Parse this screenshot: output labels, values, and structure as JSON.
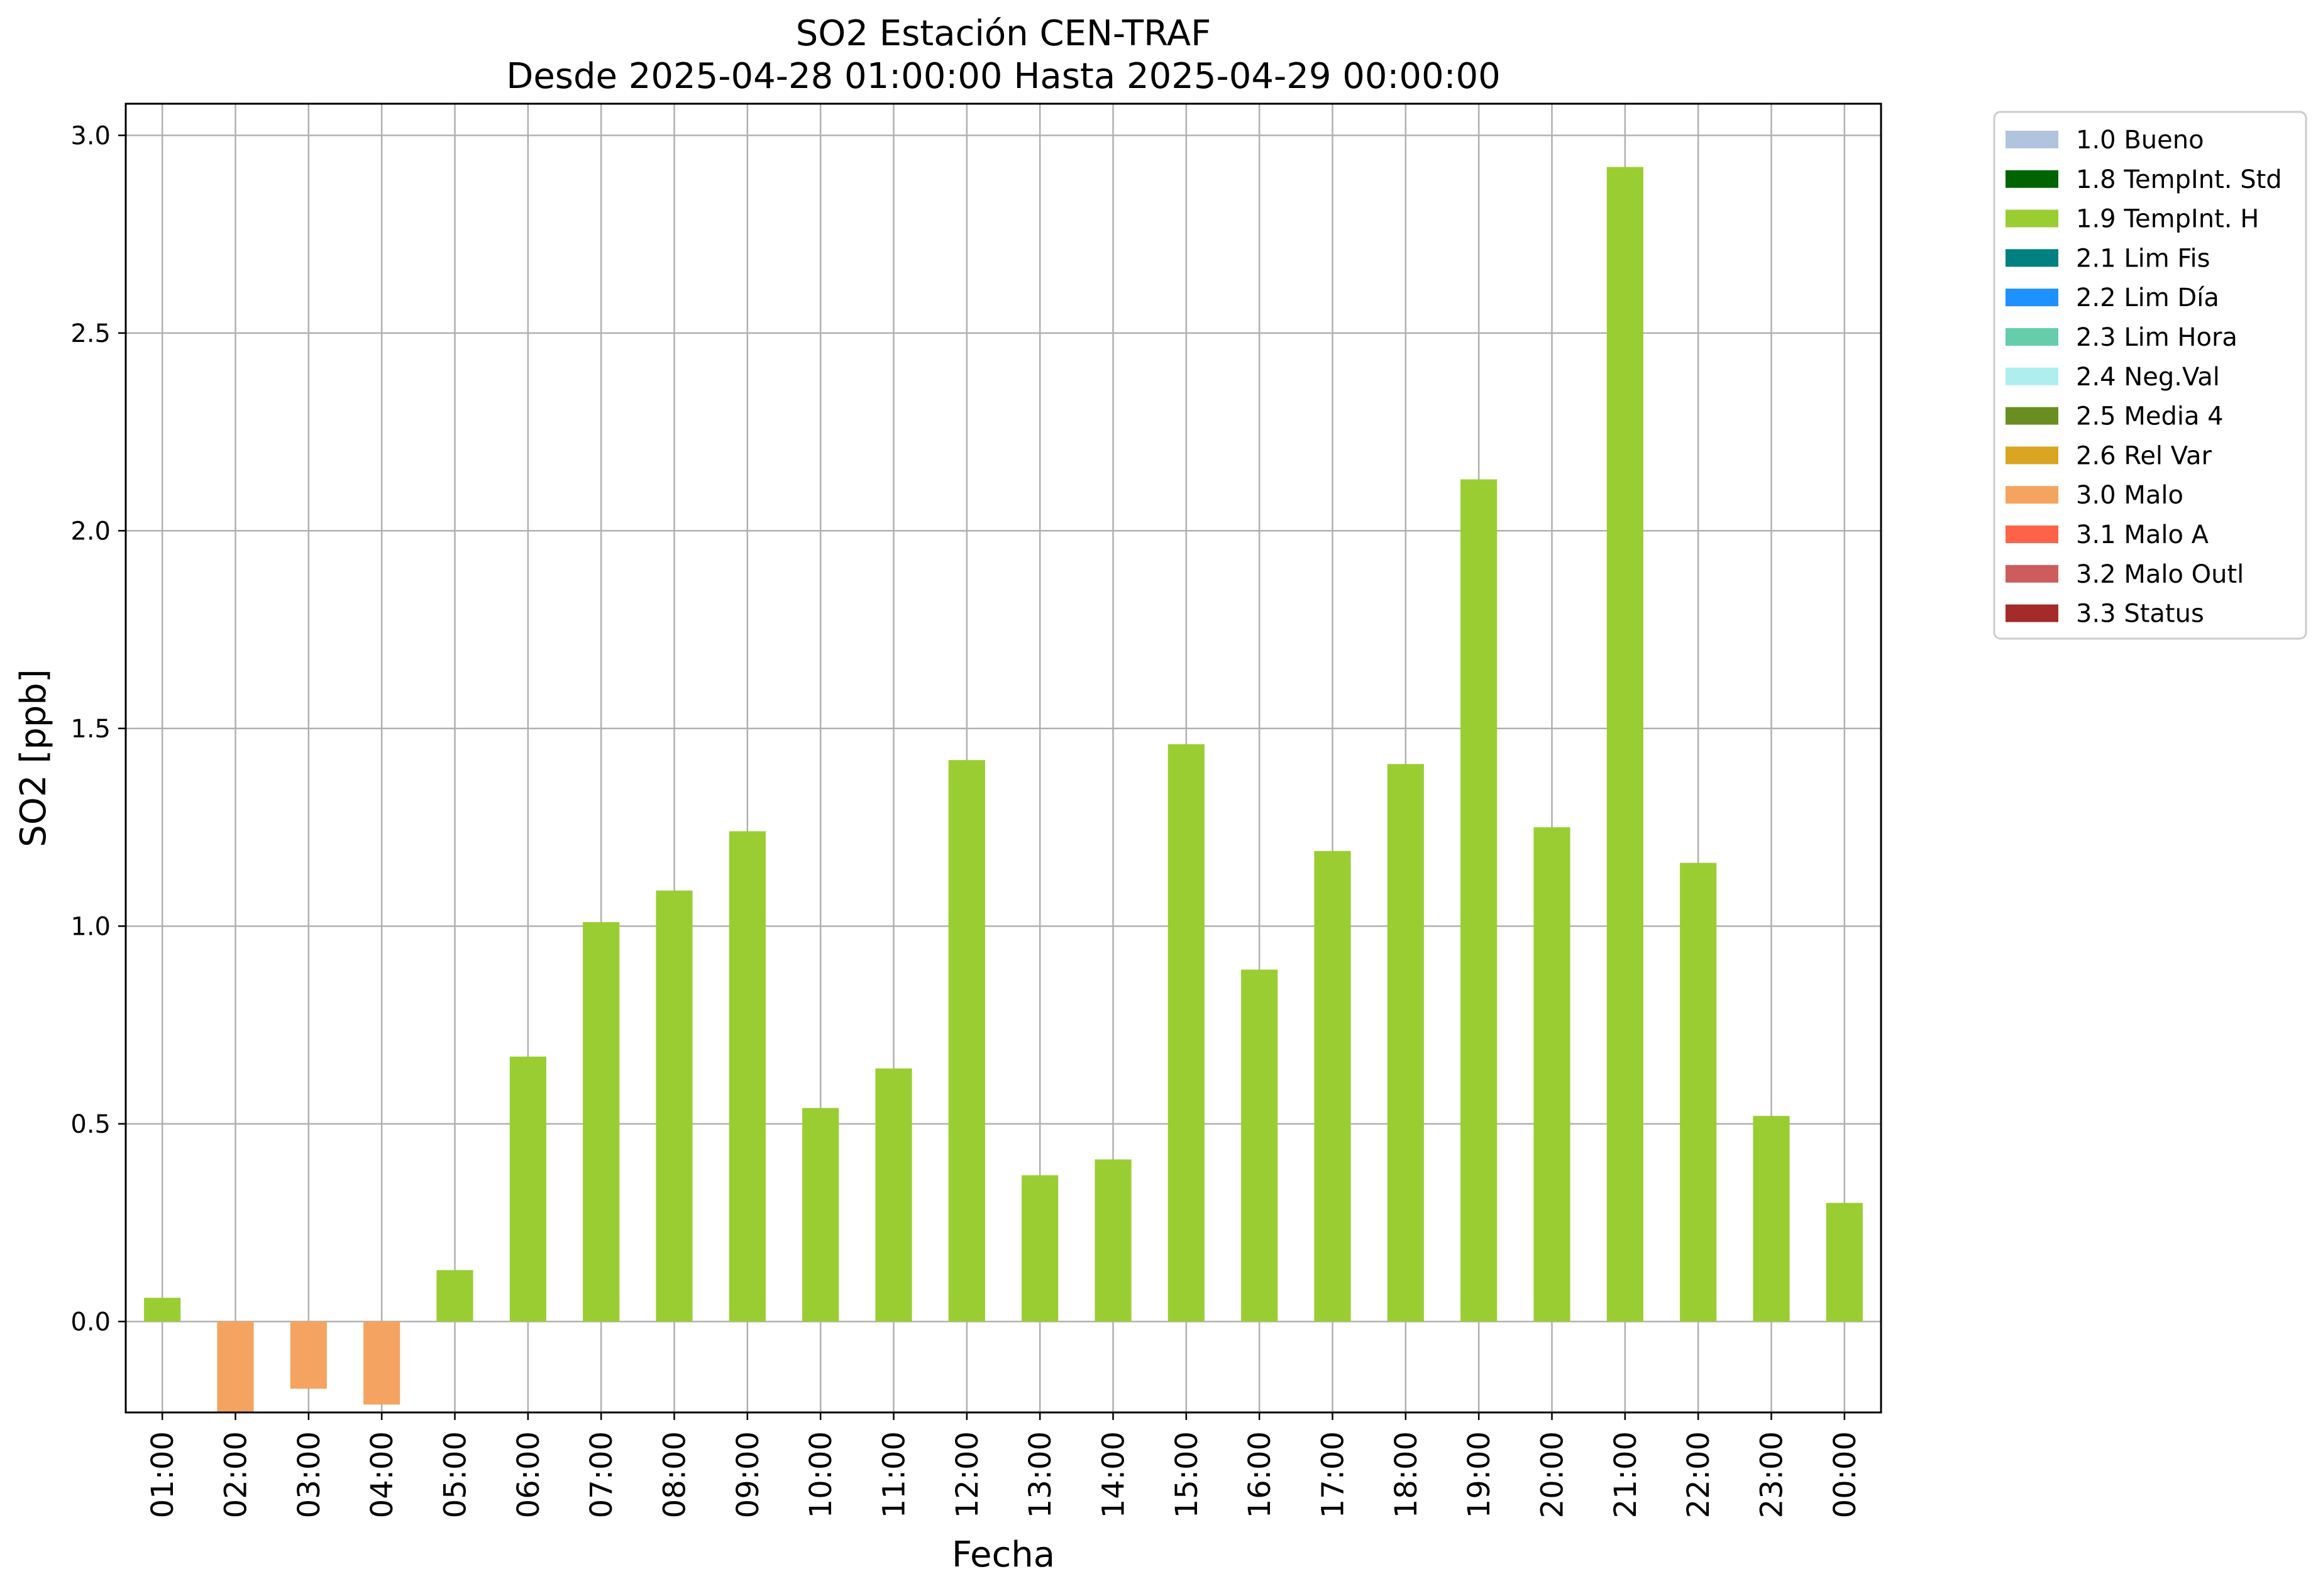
{
  "chart_data": {
    "type": "bar",
    "title": "SO2 Estación CEN-TRAF",
    "subtitle": "Desde 2025-04-28 01:00:00 Hasta 2025-04-29 00:00:00",
    "xlabel": "Fecha",
    "ylabel": "SO2 [ppb]",
    "ylim": [
      -0.23,
      3.08
    ],
    "yticks": [
      "0.0",
      "0.5",
      "1.0",
      "1.5",
      "2.0",
      "2.5",
      "3.0"
    ],
    "grid": true,
    "legend_position": "outside-right-top",
    "categories": [
      "01:00",
      "02:00",
      "03:00",
      "04:00",
      "05:00",
      "06:00",
      "07:00",
      "08:00",
      "09:00",
      "10:00",
      "11:00",
      "12:00",
      "13:00",
      "14:00",
      "15:00",
      "16:00",
      "17:00",
      "18:00",
      "19:00",
      "20:00",
      "21:00",
      "22:00",
      "23:00",
      "00:00"
    ],
    "values": [
      0.06,
      -0.24,
      -0.17,
      -0.21,
      0.13,
      0.67,
      1.01,
      1.09,
      1.24,
      0.54,
      0.64,
      1.42,
      0.37,
      0.41,
      1.46,
      0.89,
      1.19,
      1.41,
      2.13,
      1.25,
      2.92,
      1.16,
      0.52,
      0.3
    ],
    "flags": [
      "1.9",
      "3.0",
      "3.0",
      "3.0",
      "1.9",
      "1.9",
      "1.9",
      "1.9",
      "1.9",
      "1.9",
      "1.9",
      "1.9",
      "1.9",
      "1.9",
      "1.9",
      "1.9",
      "1.9",
      "1.9",
      "1.9",
      "1.9",
      "1.9",
      "1.9",
      "1.9",
      "1.9"
    ],
    "legend": [
      {
        "code": "1.0",
        "label": "1.0 Bueno",
        "color": "#b0c4de"
      },
      {
        "code": "1.8",
        "label": "1.8 TempInt. Std",
        "color": "#006400"
      },
      {
        "code": "1.9",
        "label": "1.9 TempInt. H",
        "color": "#9acd32"
      },
      {
        "code": "2.1",
        "label": "2.1 Lim Fis",
        "color": "#008080"
      },
      {
        "code": "2.2",
        "label": "2.2 Lim Día",
        "color": "#1e90ff"
      },
      {
        "code": "2.3",
        "label": "2.3 Lim Hora",
        "color": "#66cdaa"
      },
      {
        "code": "2.4",
        "label": "2.4 Neg.Val",
        "color": "#afeeee"
      },
      {
        "code": "2.5",
        "label": "2.5 Media 4",
        "color": "#6b8e23"
      },
      {
        "code": "2.6",
        "label": "2.6 Rel Var",
        "color": "#daa520"
      },
      {
        "code": "3.0",
        "label": "3.0 Malo",
        "color": "#f4a460"
      },
      {
        "code": "3.1",
        "label": "3.1 Malo A",
        "color": "#ff6347"
      },
      {
        "code": "3.2",
        "label": "3.2 Malo Outl",
        "color": "#cd5c5c"
      },
      {
        "code": "3.3",
        "label": "3.3 Status",
        "color": "#a52a2a"
      }
    ]
  }
}
